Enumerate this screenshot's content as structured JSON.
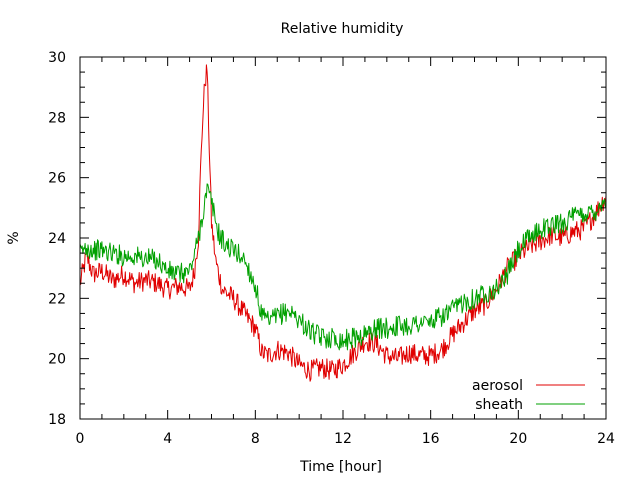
{
  "chart_data": {
    "type": "line",
    "title": "Relative humidity",
    "xlabel": "Time [hour]",
    "ylabel": "%",
    "xlim": [
      0,
      24
    ],
    "ylim": [
      18,
      30
    ],
    "x_ticks": [
      0,
      4,
      8,
      12,
      16,
      20,
      24
    ],
    "y_ticks": [
      18,
      20,
      22,
      24,
      26,
      28,
      30
    ],
    "x_minor_step": 1,
    "y_minor_step": 0.5,
    "grid": false,
    "legend_position": "bottom-right",
    "series": [
      {
        "name": "aerosol",
        "color": "#e00000",
        "x": [
          0,
          0.3,
          0.6,
          1,
          1.5,
          2,
          2.5,
          3,
          3.5,
          4,
          4.5,
          5,
          5.2,
          5.4,
          5.5,
          5.6,
          5.7,
          5.8,
          5.9,
          6,
          6.2,
          6.5,
          7,
          7.5,
          8,
          8.3,
          8.6,
          9,
          9.5,
          10,
          10.5,
          11,
          11.5,
          12,
          12.5,
          13,
          13.5,
          14,
          14.5,
          15,
          15.5,
          16,
          16.5,
          17,
          17.5,
          18,
          18.5,
          19,
          19.5,
          20,
          20.5,
          21,
          21.5,
          22,
          22.5,
          23,
          23.5,
          24
        ],
        "y": [
          22.5,
          23.4,
          22.8,
          22.9,
          22.6,
          22.8,
          22.5,
          22.6,
          22.5,
          22.3,
          22.4,
          22.3,
          22.8,
          24.0,
          26.2,
          28.0,
          29.2,
          29.6,
          27.0,
          24.5,
          23.2,
          22.3,
          22.0,
          21.5,
          21.0,
          20.2,
          20.1,
          20.3,
          20.2,
          19.8,
          19.6,
          19.7,
          19.6,
          19.8,
          20.2,
          20.6,
          20.5,
          20.1,
          20.0,
          20.2,
          20.1,
          20.1,
          20.3,
          20.8,
          21.2,
          21.6,
          21.8,
          22.3,
          23.0,
          23.4,
          23.7,
          23.9,
          24.1,
          24.0,
          24.2,
          24.3,
          24.8,
          25.4
        ]
      },
      {
        "name": "sheath",
        "color": "#00a000",
        "x": [
          0,
          0.3,
          0.6,
          1,
          1.5,
          2,
          2.5,
          3,
          3.5,
          4,
          4.5,
          5,
          5.2,
          5.4,
          5.6,
          5.8,
          6,
          6.3,
          6.6,
          7,
          7.5,
          8,
          8.3,
          8.6,
          9,
          9.5,
          10,
          10.5,
          11,
          11.5,
          12,
          12.5,
          13,
          13.5,
          14,
          14.5,
          15,
          15.5,
          16,
          16.5,
          17,
          17.5,
          18,
          18.5,
          19,
          19.5,
          20,
          20.5,
          21,
          21.5,
          22,
          22.5,
          23,
          23.5,
          24
        ],
        "y": [
          23.5,
          23.7,
          23.6,
          23.6,
          23.5,
          23.4,
          23.4,
          23.3,
          23.3,
          22.9,
          22.8,
          22.9,
          23.4,
          24.0,
          24.8,
          25.6,
          25.2,
          24.2,
          23.8,
          23.6,
          23.3,
          22.4,
          21.4,
          21.2,
          21.4,
          21.6,
          21.3,
          20.9,
          20.7,
          20.7,
          20.6,
          20.7,
          20.8,
          21.0,
          21.0,
          21.1,
          21.1,
          21.2,
          21.2,
          21.4,
          21.6,
          21.9,
          22.0,
          22.2,
          22.3,
          22.8,
          23.6,
          24.0,
          24.3,
          24.4,
          24.5,
          24.7,
          24.8,
          24.9,
          25.3
        ]
      }
    ]
  }
}
